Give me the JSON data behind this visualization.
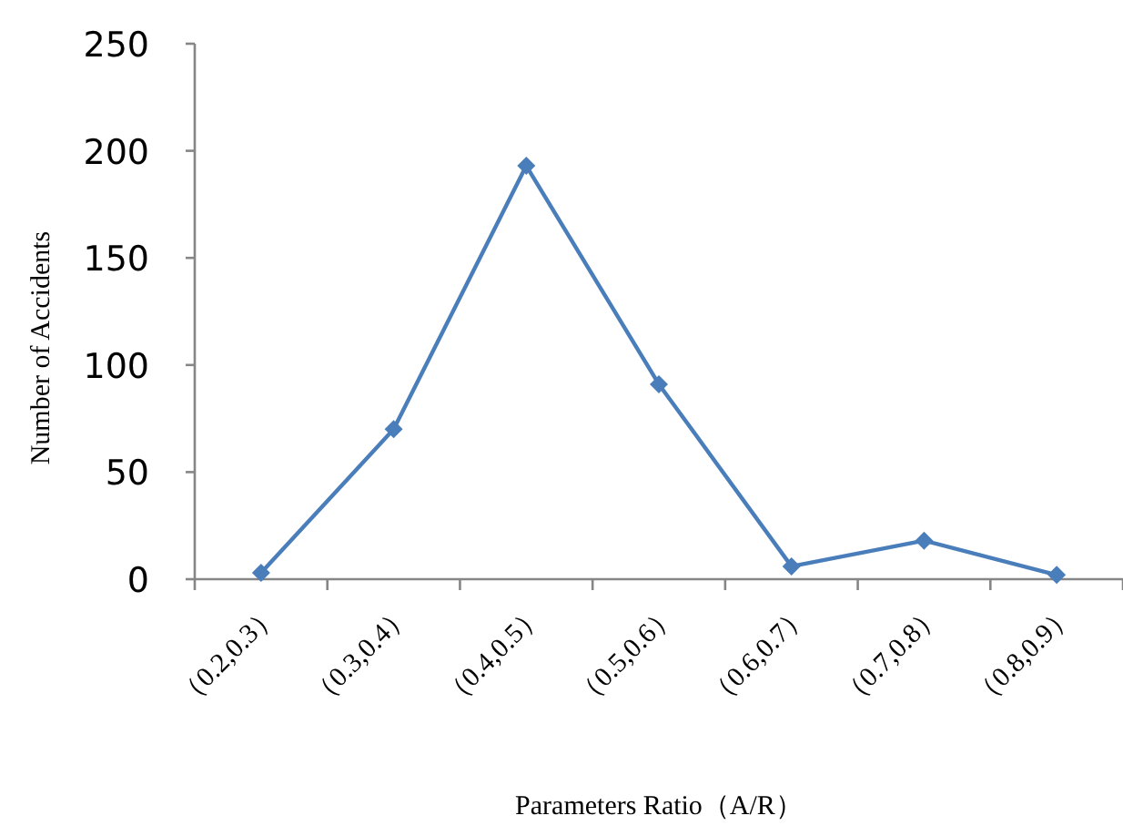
{
  "chart_data": {
    "type": "line",
    "xlabel": "Parameters Ratio（A/R）",
    "ylabel": "Number of Accidents",
    "categories": [
      "（0.2,0.3）",
      "（0.3,0.4）",
      "（0.4,0.5）",
      "（0.5,0.6）",
      "（0.6,0.7）",
      "（0.7,0.8）",
      "（0.8,0.9）"
    ],
    "series": [
      {
        "color": "#4a7ebb",
        "values": [
          3,
          70,
          193,
          91,
          6,
          18,
          2
        ]
      }
    ],
    "ylim": [
      0,
      250
    ],
    "yticks": [
      0,
      50,
      100,
      150,
      200,
      250
    ],
    "marker": "diamond",
    "line_style": "solid",
    "grid": false
  }
}
